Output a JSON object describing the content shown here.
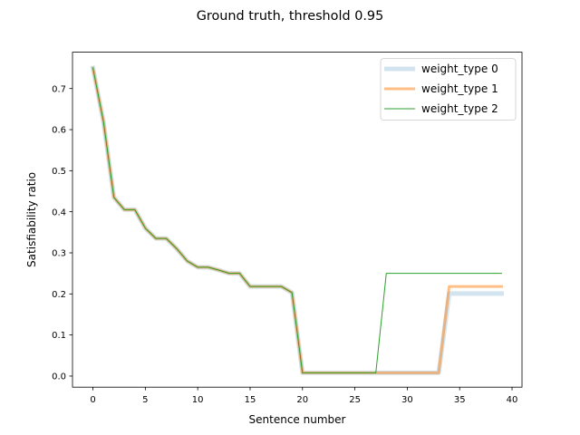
{
  "chart_data": {
    "type": "line",
    "title": "Ground truth, threshold 0.95",
    "xlabel": "Sentence number",
    "ylabel": "Satisfiability ratio",
    "xlim": [
      -1.95,
      40.95
    ],
    "ylim": [
      -0.027,
      0.7885
    ],
    "xticks": [
      0,
      5,
      10,
      15,
      20,
      25,
      30,
      35,
      40
    ],
    "yticks": [
      0.0,
      0.1,
      0.2,
      0.3,
      0.4,
      0.5,
      0.6,
      0.7
    ],
    "grid": false,
    "legend_position": "upper right",
    "x": [
      0,
      1,
      2,
      3,
      4,
      5,
      6,
      7,
      8,
      9,
      10,
      11,
      12,
      13,
      14,
      15,
      16,
      17,
      18,
      19,
      20,
      21,
      22,
      23,
      24,
      25,
      26,
      27,
      28,
      29,
      30,
      31,
      32,
      33,
      34,
      35,
      36,
      37,
      38,
      39
    ],
    "series": [
      {
        "name": "weight_type 0",
        "color": "#1f77b4",
        "values": [
          0.75,
          0.62,
          0.435,
          0.405,
          0.405,
          0.36,
          0.335,
          0.335,
          0.31,
          0.28,
          0.265,
          0.265,
          0.258,
          0.25,
          0.25,
          0.218,
          0.218,
          0.218,
          0.218,
          0.203,
          0.008,
          0.008,
          0.008,
          0.008,
          0.008,
          0.008,
          0.008,
          0.008,
          0.008,
          0.008,
          0.008,
          0.008,
          0.008,
          0.008,
          0.201,
          0.201,
          0.201,
          0.201,
          0.201,
          0.201
        ]
      },
      {
        "name": "weight_type 1",
        "color": "#ff7f0e",
        "values": [
          0.75,
          0.62,
          0.435,
          0.405,
          0.405,
          0.36,
          0.335,
          0.335,
          0.31,
          0.28,
          0.265,
          0.265,
          0.258,
          0.25,
          0.25,
          0.218,
          0.218,
          0.218,
          0.218,
          0.203,
          0.008,
          0.008,
          0.008,
          0.008,
          0.008,
          0.008,
          0.008,
          0.008,
          0.008,
          0.008,
          0.008,
          0.008,
          0.008,
          0.008,
          0.218,
          0.218,
          0.218,
          0.218,
          0.218,
          0.218
        ]
      },
      {
        "name": "weight_type 2",
        "color": "#2ca02c",
        "values": [
          0.75,
          0.62,
          0.435,
          0.405,
          0.405,
          0.36,
          0.335,
          0.335,
          0.31,
          0.28,
          0.265,
          0.265,
          0.258,
          0.25,
          0.25,
          0.218,
          0.218,
          0.218,
          0.218,
          0.203,
          0.008,
          0.008,
          0.008,
          0.008,
          0.008,
          0.008,
          0.008,
          0.008,
          0.25,
          0.25,
          0.25,
          0.25,
          0.25,
          0.25,
          0.25,
          0.25,
          0.25,
          0.25,
          0.25,
          0.25
        ]
      }
    ]
  }
}
